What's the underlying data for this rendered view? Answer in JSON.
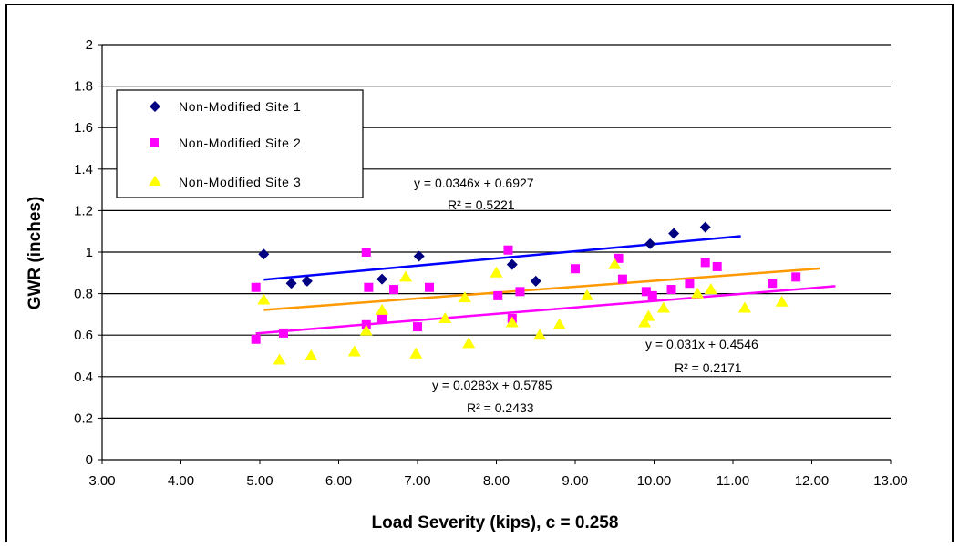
{
  "chart_data": {
    "type": "scatter",
    "xlabel": "Load Severity (kips), c = 0.258",
    "ylabel": "GWR (inches)",
    "xlim": [
      3,
      13
    ],
    "ylim": [
      0,
      2
    ],
    "x_ticks": [
      "3.00",
      "4.00",
      "5.00",
      "6.00",
      "7.00",
      "8.00",
      "9.00",
      "10.00",
      "11.00",
      "12.00",
      "13.00"
    ],
    "y_ticks": [
      "0",
      "0.2",
      "0.4",
      "0.6",
      "0.8",
      "1",
      "1.2",
      "1.4",
      "1.6",
      "1.8",
      "2"
    ],
    "grid": "horizontal",
    "legend_position": "top-left",
    "series": [
      {
        "name": "Non-Modified Site 1",
        "marker": "diamond",
        "color": "#000080",
        "points": [
          [
            5.05,
            0.99
          ],
          [
            5.4,
            0.85
          ],
          [
            5.6,
            0.86
          ],
          [
            6.55,
            0.87
          ],
          [
            7.02,
            0.98
          ],
          [
            8.2,
            0.94
          ],
          [
            8.5,
            0.86
          ],
          [
            9.95,
            1.04
          ],
          [
            10.25,
            1.09
          ],
          [
            10.65,
            1.12
          ]
        ],
        "trendline": {
          "slope": 0.0346,
          "intercept": 0.6927,
          "x_range": [
            5.05,
            11.1
          ],
          "color": "#0000ff"
        },
        "equation": "y = 0.0346x + 0.6927",
        "r_squared": "R² = 0.5221"
      },
      {
        "name": "Non-Modified Site 2",
        "marker": "square",
        "color": "#ff00ff",
        "points": [
          [
            4.95,
            0.83
          ],
          [
            4.95,
            0.58
          ],
          [
            5.3,
            0.61
          ],
          [
            6.35,
            1.0
          ],
          [
            6.38,
            0.83
          ],
          [
            6.35,
            0.65
          ],
          [
            6.55,
            0.68
          ],
          [
            6.7,
            0.82
          ],
          [
            7.0,
            0.64
          ],
          [
            7.15,
            0.83
          ],
          [
            8.02,
            0.79
          ],
          [
            8.15,
            1.01
          ],
          [
            8.2,
            0.68
          ],
          [
            8.3,
            0.81
          ],
          [
            9.0,
            0.92
          ],
          [
            9.55,
            0.97
          ],
          [
            9.6,
            0.87
          ],
          [
            9.9,
            0.81
          ],
          [
            9.98,
            0.79
          ],
          [
            10.22,
            0.82
          ],
          [
            10.45,
            0.85
          ],
          [
            10.65,
            0.95
          ],
          [
            10.8,
            0.93
          ],
          [
            11.5,
            0.85
          ],
          [
            11.8,
            0.88
          ]
        ],
        "trendline": {
          "slope": 0.031,
          "intercept": 0.4546,
          "x_range": [
            4.95,
            12.3
          ],
          "color": "#ff00ff"
        },
        "equation": "y = 0.031x + 0.4546",
        "r_squared": "R² = 0.2171"
      },
      {
        "name": "Non-Modified Site 3",
        "marker": "triangle",
        "color": "#ffff00",
        "points": [
          [
            5.05,
            0.77
          ],
          [
            5.25,
            0.48
          ],
          [
            5.65,
            0.5
          ],
          [
            6.2,
            0.52
          ],
          [
            6.35,
            0.62
          ],
          [
            6.55,
            0.72
          ],
          [
            6.85,
            0.88
          ],
          [
            6.98,
            0.51
          ],
          [
            7.35,
            0.68
          ],
          [
            7.6,
            0.78
          ],
          [
            7.65,
            0.56
          ],
          [
            8.0,
            0.9
          ],
          [
            8.2,
            0.66
          ],
          [
            8.55,
            0.6
          ],
          [
            8.8,
            0.65
          ],
          [
            9.15,
            0.79
          ],
          [
            9.5,
            0.94
          ],
          [
            9.88,
            0.66
          ],
          [
            9.93,
            0.69
          ],
          [
            10.12,
            0.73
          ],
          [
            10.55,
            0.8
          ],
          [
            10.72,
            0.82
          ],
          [
            11.15,
            0.73
          ],
          [
            11.62,
            0.76
          ]
        ],
        "trendline": {
          "slope": 0.0283,
          "intercept": 0.5785,
          "x_range": [
            5.05,
            12.1
          ],
          "color": "#ff9900"
        },
        "equation": "y = 0.0283x + 0.5785",
        "r_squared": "R² = 0.2433"
      }
    ]
  }
}
